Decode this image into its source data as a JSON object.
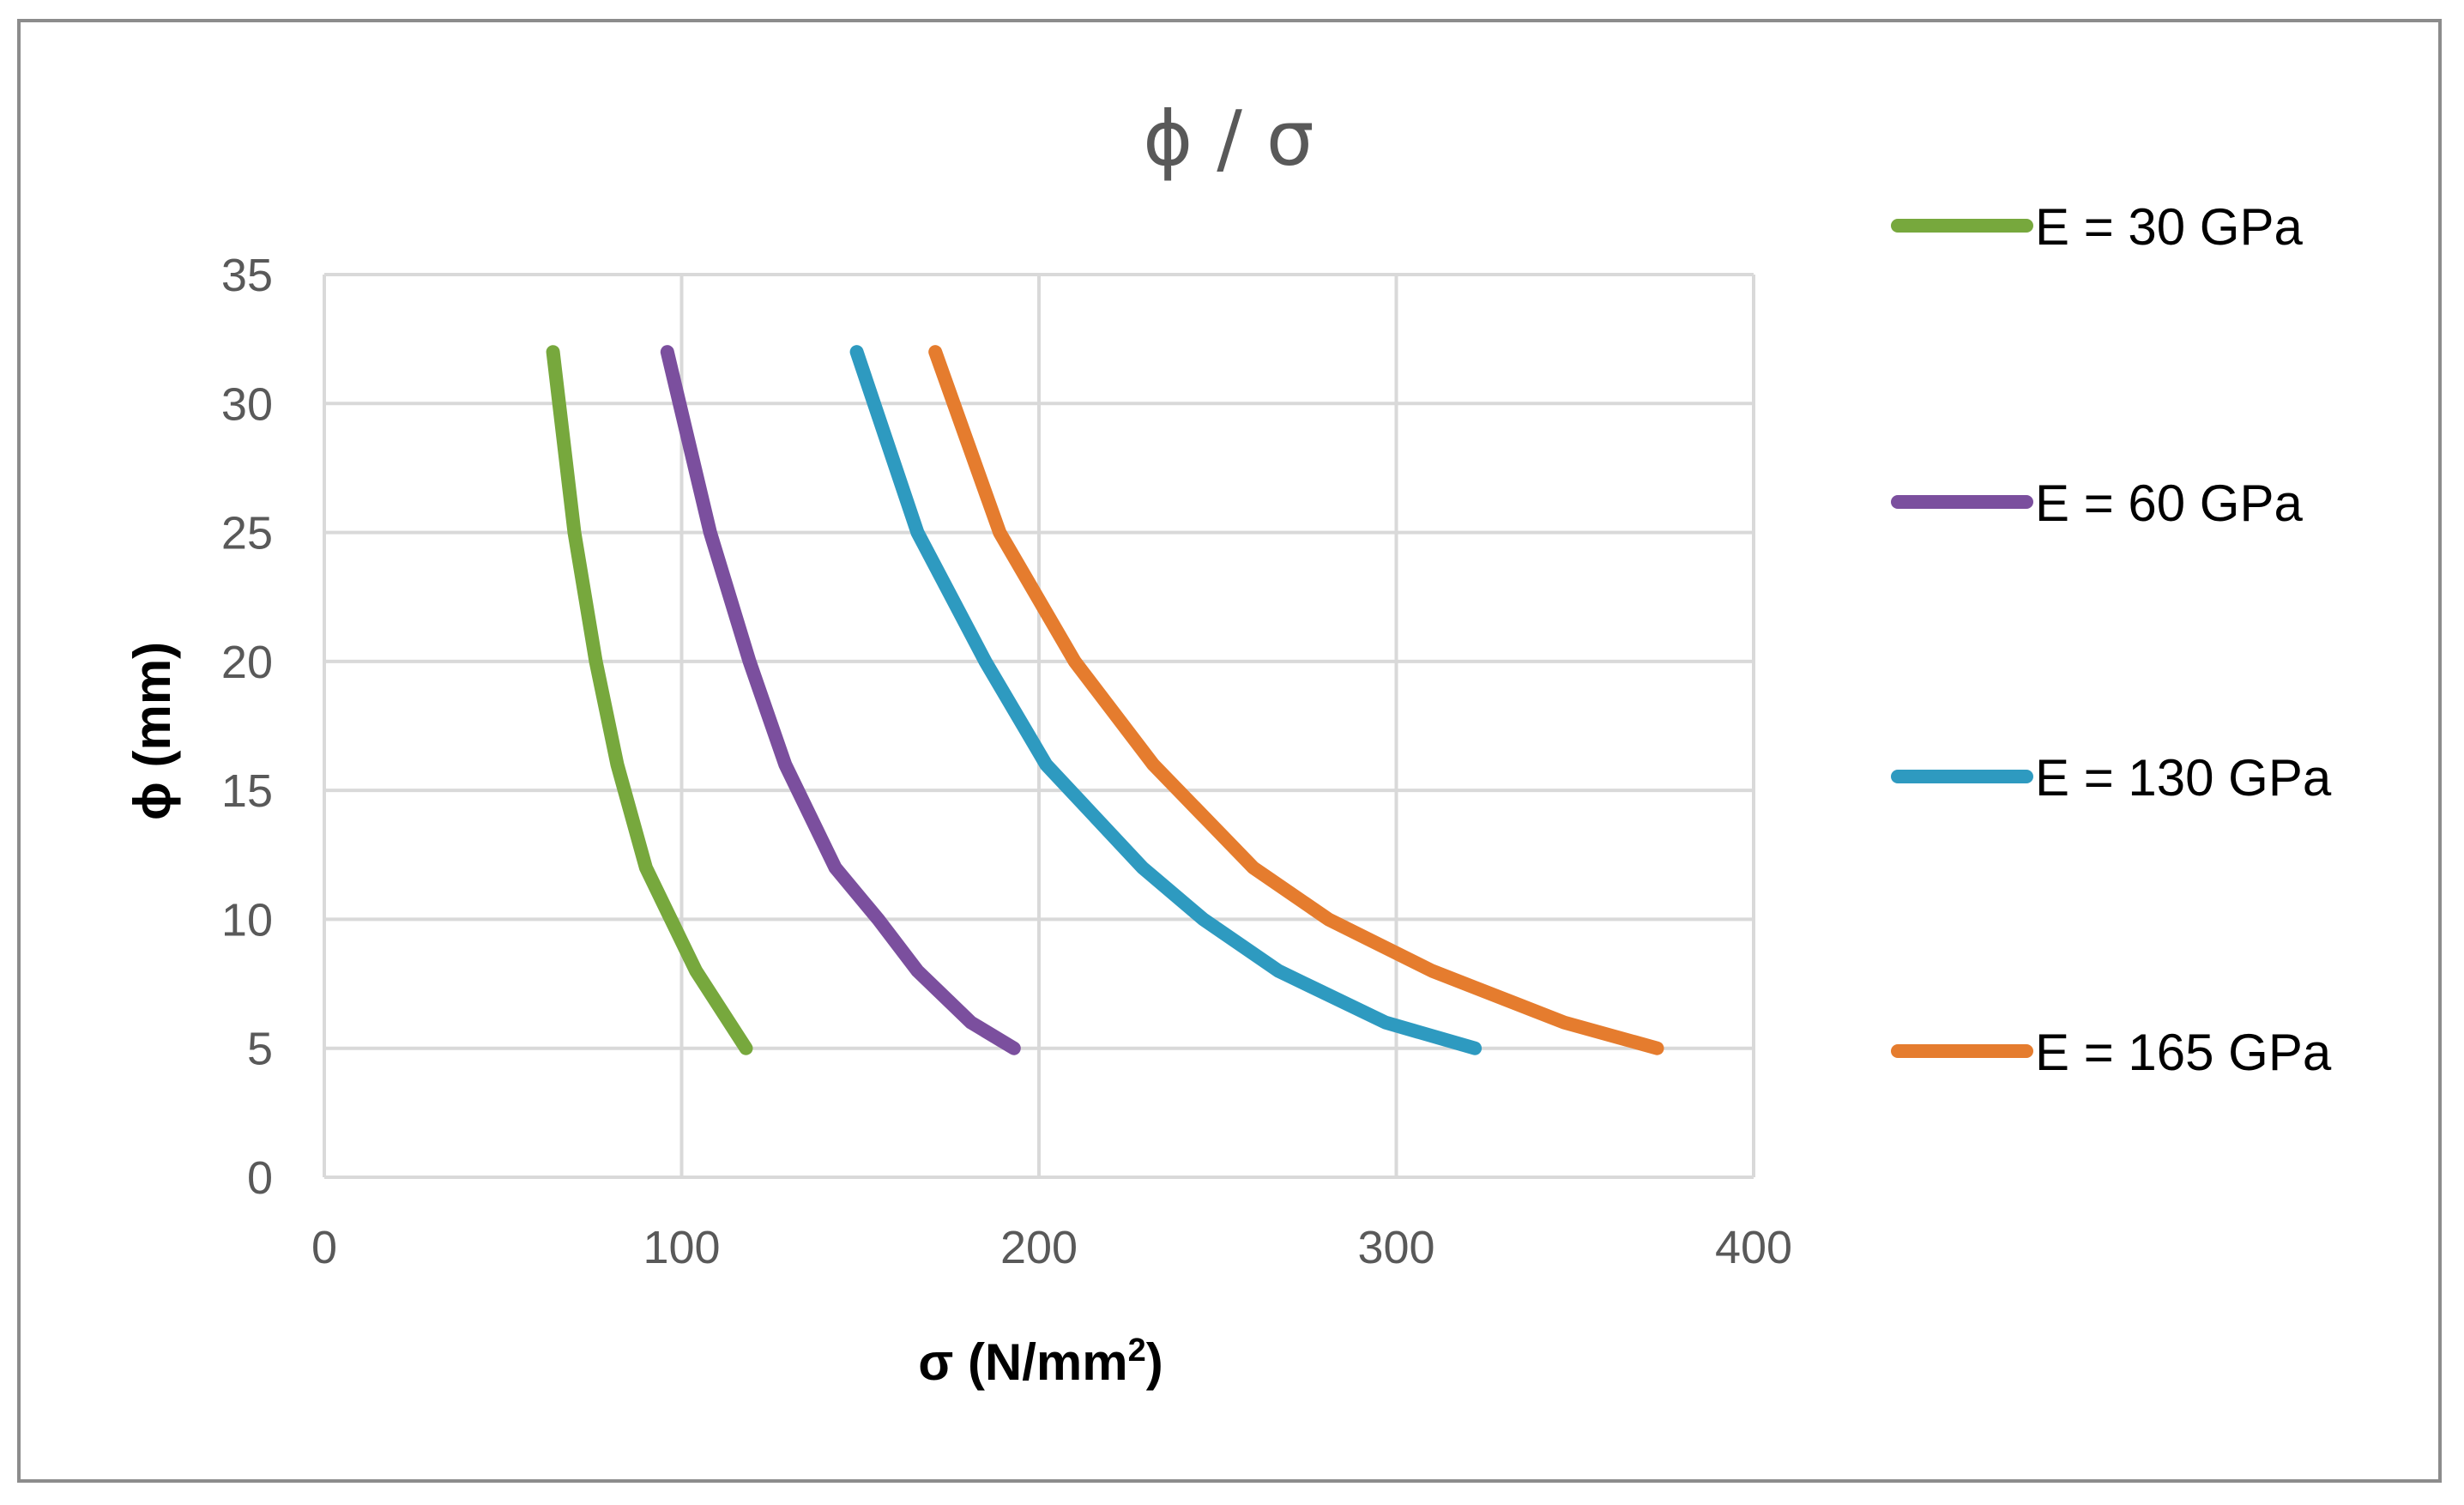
{
  "chart_data": {
    "type": "line",
    "title": "ϕ / σ",
    "xlabel": "σ (N/mm²)",
    "xlabel_main": "σ (N/mm",
    "xlabel_sup": "2",
    "xlabel_close": ")",
    "ylabel": "ϕ (mm)",
    "xlim": [
      0,
      400
    ],
    "ylim": [
      0,
      35
    ],
    "xticks": [
      "0",
      "100",
      "200",
      "300",
      "400"
    ],
    "yticks": [
      "0",
      "5",
      "10",
      "15",
      "20",
      "25",
      "30",
      "35"
    ],
    "grid": true,
    "legend_position": "right",
    "series": [
      {
        "name": "E = 30 GPa",
        "color": "#77A83D",
        "x": [
          64,
          70,
          76,
          82,
          90,
          97,
          104,
          118
        ],
        "y": [
          32,
          25,
          20,
          16,
          12,
          10,
          8,
          5
        ]
      },
      {
        "name": "E = 60 GPa",
        "color": "#7B4F9E",
        "x": [
          96,
          108,
          119,
          129,
          143,
          155,
          166,
          181,
          193
        ],
        "y": [
          32,
          25,
          20,
          16,
          12,
          10,
          8,
          6,
          5
        ]
      },
      {
        "name": "E = 130 GPa",
        "color": "#2E9AC0",
        "x": [
          149,
          166,
          185,
          202,
          229,
          246,
          267,
          297,
          322
        ],
        "y": [
          32,
          25,
          20,
          16,
          12,
          10,
          8,
          6,
          5
        ]
      },
      {
        "name": "E = 165 GPa",
        "color": "#E57C2E",
        "x": [
          171,
          189,
          210,
          232,
          260,
          281,
          310,
          347,
          373
        ],
        "y": [
          32,
          25,
          20,
          16,
          12,
          10,
          8,
          6,
          5
        ]
      }
    ]
  },
  "colors": {
    "grid": "#d9d9d9",
    "tick_text": "#595959",
    "frame": "#8c8c8c"
  }
}
